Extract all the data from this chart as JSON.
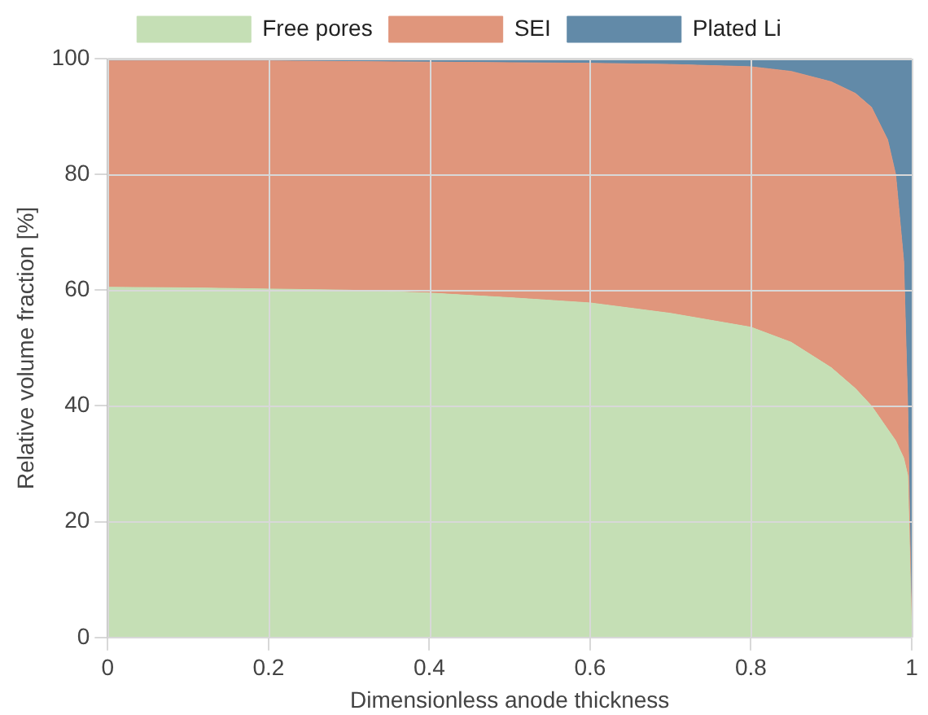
{
  "chart_data": {
    "type": "area",
    "stacked": true,
    "xlabel": "Dimensionless anode thickness",
    "ylabel": "Relative volume fraction [%]",
    "x": [
      0,
      0.1,
      0.2,
      0.3,
      0.4,
      0.5,
      0.6,
      0.7,
      0.8,
      0.85,
      0.9,
      0.93,
      0.95,
      0.97,
      0.98,
      0.99,
      0.995,
      1
    ],
    "series": [
      {
        "name": "Free pores",
        "color": "#c5dfb5",
        "values": [
          60.5,
          60.4,
          60.2,
          60,
          59.5,
          58.7,
          57.8,
          56,
          53.6,
          51,
          46.6,
          43,
          40,
          36,
          34,
          31,
          28,
          0
        ]
      },
      {
        "name": "SEI",
        "color": "#e0967c",
        "values": [
          39.1,
          39.2,
          39.4,
          39.5,
          39.9,
          40.6,
          41.4,
          43,
          45,
          46.8,
          49.4,
          51,
          51.6,
          50,
          46,
          34,
          12,
          0
        ]
      },
      {
        "name": "Plated Li",
        "color": "#628aa8",
        "values": [
          0.4,
          0.4,
          0.4,
          0.5,
          0.6,
          0.7,
          0.8,
          1,
          1.4,
          2.2,
          4,
          6,
          8.4,
          14,
          20,
          35,
          60,
          100
        ]
      }
    ],
    "xlim": [
      0,
      1
    ],
    "xticks": [
      0,
      0.2,
      0.4,
      0.6,
      0.8,
      1
    ],
    "ylim": [
      0,
      100
    ],
    "yticks": [
      0,
      20,
      40,
      60,
      80,
      100
    ],
    "grid": true,
    "legend": "top"
  }
}
